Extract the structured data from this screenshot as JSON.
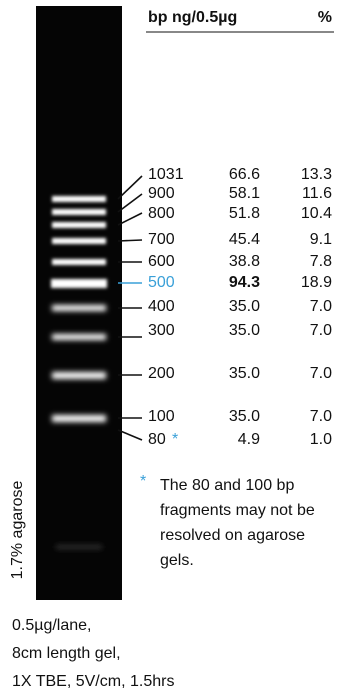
{
  "header": {
    "bp": "bp",
    "ng": "ng/0.5µg",
    "pct": "%"
  },
  "rows": [
    {
      "bp": "1031",
      "ng": "66.6",
      "pct": "13.3"
    },
    {
      "bp": "900",
      "ng": "58.1",
      "pct": "11.6"
    },
    {
      "bp": "800",
      "ng": "51.8",
      "pct": "10.4"
    },
    {
      "bp": "700",
      "ng": "45.4",
      "pct": "9.1"
    },
    {
      "bp": "600",
      "ng": "38.8",
      "pct": "7.8"
    },
    {
      "bp": "500",
      "ng": "94.3",
      "pct": "18.9"
    },
    {
      "bp": "400",
      "ng": "35.0",
      "pct": "7.0"
    },
    {
      "bp": "300",
      "ng": "35.0",
      "pct": "7.0"
    },
    {
      "bp": "200",
      "ng": "35.0",
      "pct": "7.0"
    },
    {
      "bp": "100",
      "ng": "35.0",
      "pct": "7.0"
    },
    {
      "bp": "80",
      "ng": "4.9",
      "pct": "1.0"
    }
  ],
  "asterisk": "*",
  "note": [
    "The 80 and 100 bp",
    "fragments may not be",
    "resolved on agarose",
    "gels."
  ],
  "gel_label": "1.7% agarose",
  "caption": [
    "0.5µg/lane,",
    "8cm length gel,",
    "1X TBE, 5V/cm, 1.5hrs"
  ]
}
